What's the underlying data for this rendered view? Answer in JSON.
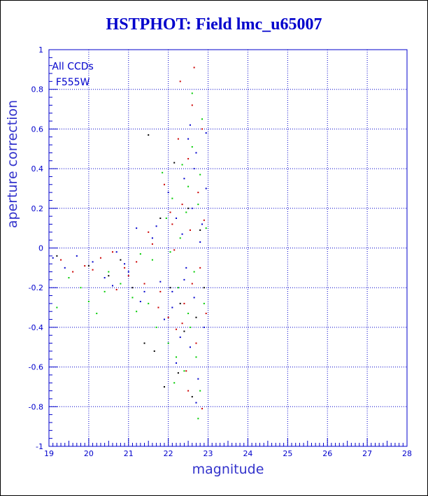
{
  "chart_data": {
    "type": "scatter",
    "title": "HSTPHOT: Field lmc_u65007",
    "xlabel": "magnitude",
    "ylabel": "aperture correction",
    "xlim": [
      19,
      28
    ],
    "ylim": [
      -1,
      1
    ],
    "xticks": [
      "19",
      "20",
      "21",
      "22",
      "23",
      "24",
      "25",
      "26",
      "27",
      "28"
    ],
    "yticks": [
      "-1",
      "-0.8",
      "-0.6",
      "-0.4",
      "-0.2",
      "0",
      "0.2",
      "0.4",
      "0.6",
      "0.8",
      "1"
    ],
    "grid": true,
    "grid_style": "dotted",
    "annotations": [
      "All CCDs",
      "F555W"
    ],
    "colors": {
      "axis": "#0000cc",
      "title": "#0000cc",
      "series": [
        "#cc0000",
        "#00cc00",
        "#0000cc",
        "#000000"
      ]
    },
    "series": [
      {
        "color": "#cc0000",
        "points": [
          [
            19.3,
            -0.06
          ],
          [
            19.6,
            -0.12
          ],
          [
            19.9,
            -0.09
          ],
          [
            20.3,
            -0.05
          ],
          [
            20.6,
            -0.02
          ],
          [
            20.9,
            -0.1
          ],
          [
            21.2,
            -0.07
          ],
          [
            21.4,
            -0.18
          ],
          [
            21.6,
            0.02
          ],
          [
            21.8,
            -0.22
          ],
          [
            21.9,
            0.32
          ],
          [
            22.0,
            -0.35
          ],
          [
            22.1,
            0.12
          ],
          [
            22.2,
            -0.41
          ],
          [
            22.3,
            0.84
          ],
          [
            22.35,
            0.22
          ],
          [
            22.4,
            -0.28
          ],
          [
            22.45,
            -0.62
          ],
          [
            22.5,
            0.45
          ],
          [
            22.55,
            0.09
          ],
          [
            22.6,
            -0.18
          ],
          [
            22.65,
            0.91
          ],
          [
            22.7,
            -0.48
          ],
          [
            22.75,
            0.28
          ],
          [
            22.8,
            -0.1
          ],
          [
            22.85,
            -0.81
          ],
          [
            22.9,
            0.14
          ],
          [
            22.95,
            -0.33
          ],
          [
            21.0,
            -0.14
          ],
          [
            20.7,
            -0.21
          ],
          [
            21.5,
            0.08
          ],
          [
            22.15,
            -0.01
          ],
          [
            22.25,
            0.55
          ],
          [
            22.5,
            -0.72
          ],
          [
            22.85,
            0.6
          ],
          [
            20.1,
            -0.11
          ],
          [
            21.75,
            -0.3
          ],
          [
            22.05,
            0.18
          ],
          [
            22.6,
            0.72
          ],
          [
            22.35,
            -0.38
          ]
        ]
      },
      {
        "color": "#00cc00",
        "points": [
          [
            19.2,
            -0.3
          ],
          [
            19.5,
            -0.15
          ],
          [
            19.8,
            -0.2
          ],
          [
            20.2,
            -0.33
          ],
          [
            20.5,
            -0.12
          ],
          [
            20.8,
            -0.18
          ],
          [
            21.1,
            -0.25
          ],
          [
            21.3,
            -0.03
          ],
          [
            21.5,
            -0.28
          ],
          [
            21.7,
            -0.4
          ],
          [
            21.85,
            0.38
          ],
          [
            22.0,
            -0.48
          ],
          [
            22.1,
            0.25
          ],
          [
            22.2,
            -0.55
          ],
          [
            22.3,
            0.05
          ],
          [
            22.35,
            0.42
          ],
          [
            22.4,
            -0.62
          ],
          [
            22.5,
            0.31
          ],
          [
            22.55,
            -0.4
          ],
          [
            22.6,
            0.78
          ],
          [
            22.65,
            -0.12
          ],
          [
            22.7,
            -0.55
          ],
          [
            22.75,
            0.22
          ],
          [
            22.8,
            -0.72
          ],
          [
            22.85,
            0.65
          ],
          [
            22.9,
            -0.28
          ],
          [
            22.95,
            0.1
          ],
          [
            20.4,
            -0.22
          ],
          [
            21.6,
            -0.06
          ],
          [
            22.25,
            -0.2
          ],
          [
            22.45,
            0.18
          ],
          [
            22.75,
            -0.86
          ],
          [
            21.95,
            0.15
          ],
          [
            22.15,
            -0.68
          ],
          [
            22.6,
            0.51
          ],
          [
            20.0,
            -0.27
          ],
          [
            21.2,
            -0.32
          ],
          [
            22.05,
            -0.02
          ],
          [
            22.8,
            0.37
          ],
          [
            22.5,
            -0.33
          ]
        ]
      },
      {
        "color": "#0000cc",
        "points": [
          [
            19.1,
            -0.05
          ],
          [
            19.4,
            -0.1
          ],
          [
            19.7,
            -0.04
          ],
          [
            20.1,
            -0.07
          ],
          [
            20.4,
            -0.15
          ],
          [
            20.7,
            -0.02
          ],
          [
            21.0,
            -0.12
          ],
          [
            21.2,
            0.1
          ],
          [
            21.4,
            -0.22
          ],
          [
            21.6,
            0.05
          ],
          [
            21.8,
            -0.17
          ],
          [
            22.0,
            0.28
          ],
          [
            22.1,
            -0.3
          ],
          [
            22.2,
            0.15
          ],
          [
            22.3,
            -0.45
          ],
          [
            22.4,
            0.35
          ],
          [
            22.45,
            -0.1
          ],
          [
            22.5,
            0.55
          ],
          [
            22.55,
            -0.5
          ],
          [
            22.6,
            0.2
          ],
          [
            22.65,
            -0.25
          ],
          [
            22.7,
            0.48
          ],
          [
            22.75,
            -0.66
          ],
          [
            22.8,
            0.03
          ],
          [
            22.9,
            -0.4
          ],
          [
            22.95,
            0.3
          ],
          [
            20.9,
            -0.08
          ],
          [
            21.3,
            -0.27
          ],
          [
            21.9,
            -0.36
          ],
          [
            22.2,
            -0.58
          ],
          [
            22.35,
            0.07
          ],
          [
            22.55,
            0.62
          ],
          [
            22.7,
            -0.78
          ],
          [
            22.85,
            0.12
          ],
          [
            22.95,
            0.58
          ],
          [
            20.6,
            -0.19
          ],
          [
            21.7,
            0.11
          ],
          [
            22.1,
            -0.22
          ],
          [
            22.4,
            -0.16
          ],
          [
            22.65,
            0.4
          ]
        ]
      },
      {
        "color": "#000000",
        "points": [
          [
            19.2,
            -0.04
          ],
          [
            20.0,
            -0.09
          ],
          [
            20.8,
            -0.06
          ],
          [
            21.1,
            -0.2
          ],
          [
            21.5,
            0.57
          ],
          [
            21.65,
            -0.52
          ],
          [
            21.9,
            -0.7
          ],
          [
            22.05,
            -0.2
          ],
          [
            22.15,
            0.43
          ],
          [
            22.3,
            -0.28
          ],
          [
            22.5,
            0.2
          ],
          [
            22.7,
            -0.35
          ],
          [
            22.9,
            -0.2
          ],
          [
            21.4,
            -0.48
          ],
          [
            22.6,
            -0.75
          ],
          [
            22.8,
            0.09
          ],
          [
            21.8,
            0.15
          ],
          [
            22.25,
            -0.63
          ],
          [
            20.5,
            -0.14
          ],
          [
            22.4,
            -0.42
          ]
        ]
      }
    ]
  }
}
